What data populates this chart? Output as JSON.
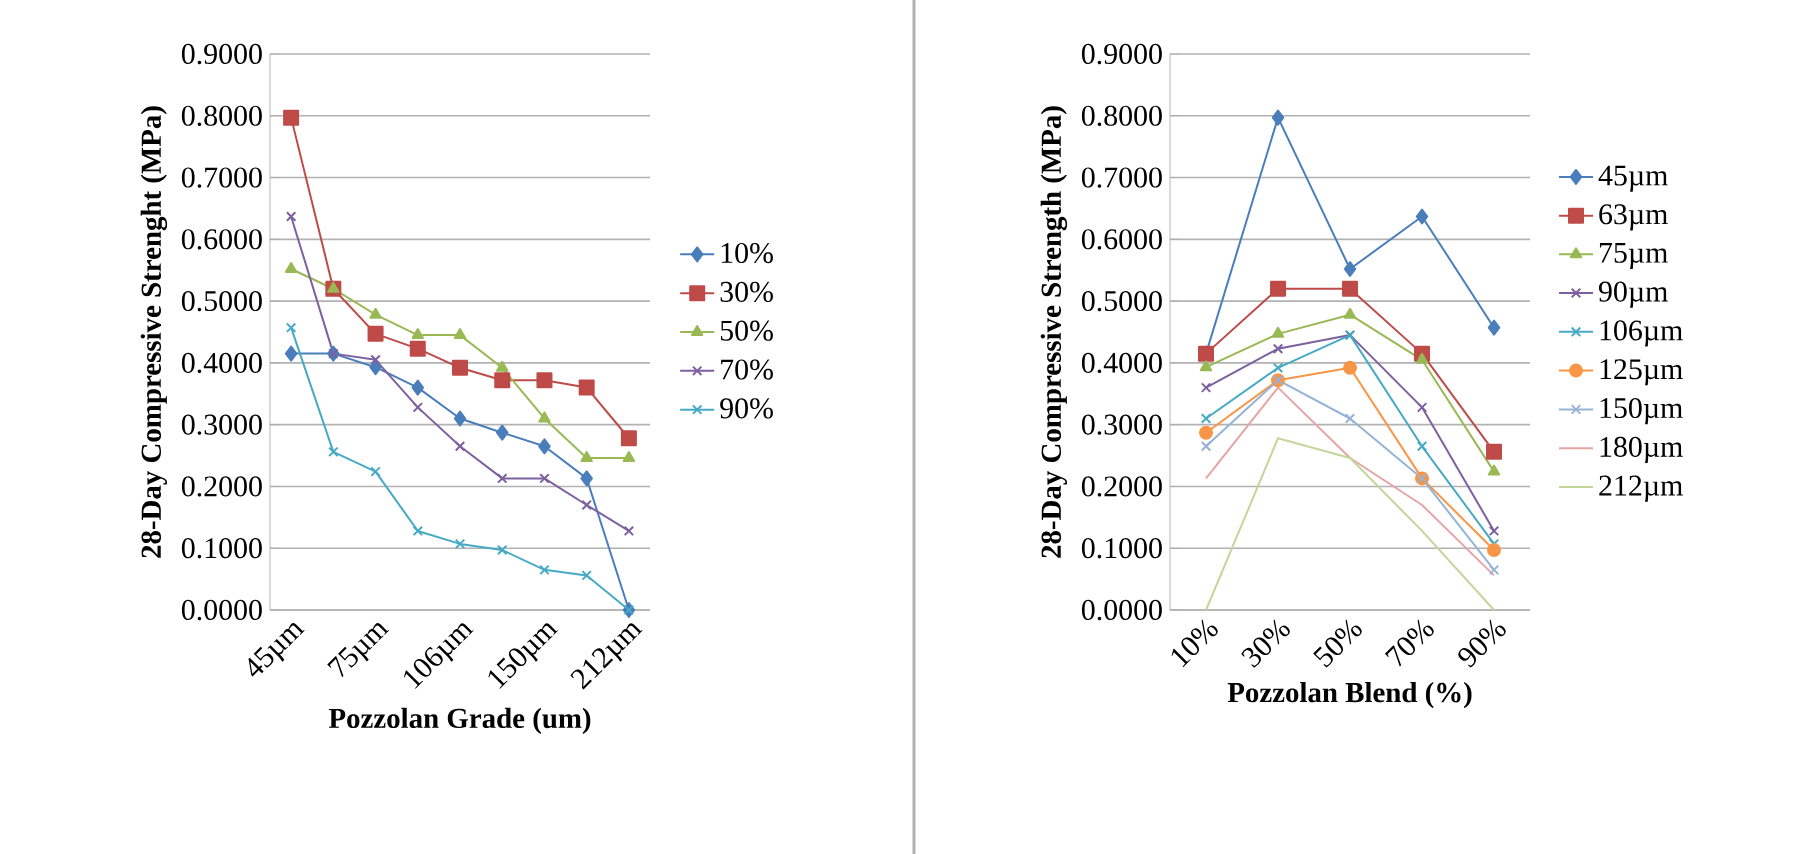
{
  "chart_data": [
    {
      "type": "line",
      "xlabel": "Pozzolan Grade (um)",
      "ylabel": "28-Day Compressive Strenght (MPa)",
      "categories": [
        "45µm",
        null,
        "75µm",
        null,
        "106µm",
        null,
        "150µm",
        null,
        "212µm"
      ],
      "ylim": [
        0,
        0.9
      ],
      "yticks": [
        {
          "value": 0,
          "label": "0.0000"
        },
        {
          "value": 0.1,
          "label": "0.1000"
        },
        {
          "value": 0.2,
          "label": "0.2000"
        },
        {
          "value": 0.3,
          "label": "0.3000"
        },
        {
          "value": 0.4,
          "label": "0.4000"
        },
        {
          "value": 0.5,
          "label": "0.5000"
        },
        {
          "value": 0.6,
          "label": "0.6000"
        },
        {
          "value": 0.7,
          "label": "0.7000"
        },
        {
          "value": 0.8,
          "label": "0.8000"
        },
        {
          "value": 0.9,
          "label": "0.9000"
        }
      ],
      "grid": "y",
      "legend": "right",
      "series": [
        {
          "name": "10%",
          "color": "#4a7ebb",
          "marker": "diamond",
          "values": [
            0.415,
            0.415,
            0.393,
            0.36,
            0.31,
            0.287,
            0.265,
            0.213,
            0
          ]
        },
        {
          "name": "30%",
          "color": "#be4b48",
          "marker": "square",
          "values": [
            0.797,
            0.52,
            0.447,
            0.423,
            0.392,
            0.372,
            0.372,
            0.36,
            0.278
          ]
        },
        {
          "name": "50%",
          "color": "#98b954",
          "marker": "triangle",
          "values": [
            0.552,
            0.52,
            0.478,
            0.445,
            0.445,
            0.392,
            0.31,
            0.246,
            0.246
          ]
        },
        {
          "name": "70%",
          "color": "#7d60a0",
          "marker": "cross",
          "values": [
            0.637,
            0.415,
            0.405,
            0.328,
            0.265,
            0.213,
            0.213,
            0.17,
            0.128
          ]
        },
        {
          "name": "90%",
          "color": "#46aac5",
          "marker": "cross",
          "values": [
            0.457,
            0.256,
            0.224,
            0.128,
            0.107,
            0.097,
            0.065,
            0.056,
            0
          ]
        }
      ]
    },
    {
      "type": "line",
      "xlabel": "Pozzolan Blend (%)",
      "ylabel": "28-Day Compressive Strength (MPa)",
      "categories": [
        "10%",
        "30%",
        "50%",
        "70%",
        "90%"
      ],
      "ylim": [
        0,
        0.9
      ],
      "yticks": [
        {
          "value": 0,
          "label": "0.0000"
        },
        {
          "value": 0.1,
          "label": "0.1000"
        },
        {
          "value": 0.2,
          "label": "0.2000"
        },
        {
          "value": 0.3,
          "label": "0.3000"
        },
        {
          "value": 0.4,
          "label": "0.4000"
        },
        {
          "value": 0.5,
          "label": "0.5000"
        },
        {
          "value": 0.6,
          "label": "0.6000"
        },
        {
          "value": 0.7,
          "label": "0.7000"
        },
        {
          "value": 0.8,
          "label": "0.8000"
        },
        {
          "value": 0.9,
          "label": "0.9000"
        }
      ],
      "grid": "y",
      "legend": "right",
      "series": [
        {
          "name": "45µm",
          "color": "#4a7ebb",
          "marker": "diamond",
          "values": [
            0.415,
            0.797,
            0.552,
            0.637,
            0.457
          ]
        },
        {
          "name": "63µm",
          "color": "#be4b48",
          "marker": "square",
          "values": [
            0.415,
            0.52,
            0.52,
            0.415,
            0.256
          ]
        },
        {
          "name": "75µm",
          "color": "#98b954",
          "marker": "triangle",
          "values": [
            0.393,
            0.447,
            0.478,
            0.405,
            0.224
          ]
        },
        {
          "name": "90µm",
          "color": "#7d60a0",
          "marker": "cross",
          "values": [
            0.36,
            0.423,
            0.445,
            0.328,
            0.128
          ]
        },
        {
          "name": "106µm",
          "color": "#46aac5",
          "marker": "cross",
          "values": [
            0.31,
            0.392,
            0.445,
            0.265,
            0.107
          ]
        },
        {
          "name": "125µm",
          "color": "#f79646",
          "marker": "circle",
          "values": [
            0.287,
            0.372,
            0.392,
            0.213,
            0.097
          ]
        },
        {
          "name": "150µm",
          "color": "#95b3d7",
          "marker": "cross",
          "values": [
            0.265,
            0.372,
            0.31,
            0.213,
            0.065
          ]
        },
        {
          "name": "180µm",
          "color": "#e6a5a4",
          "marker": "none",
          "values": [
            0.213,
            0.36,
            0.246,
            0.17,
            0.056
          ]
        },
        {
          "name": "212µm",
          "color": "#c3d69b",
          "marker": "none",
          "values": [
            0,
            0.278,
            0.246,
            0.128,
            0
          ]
        }
      ]
    }
  ]
}
